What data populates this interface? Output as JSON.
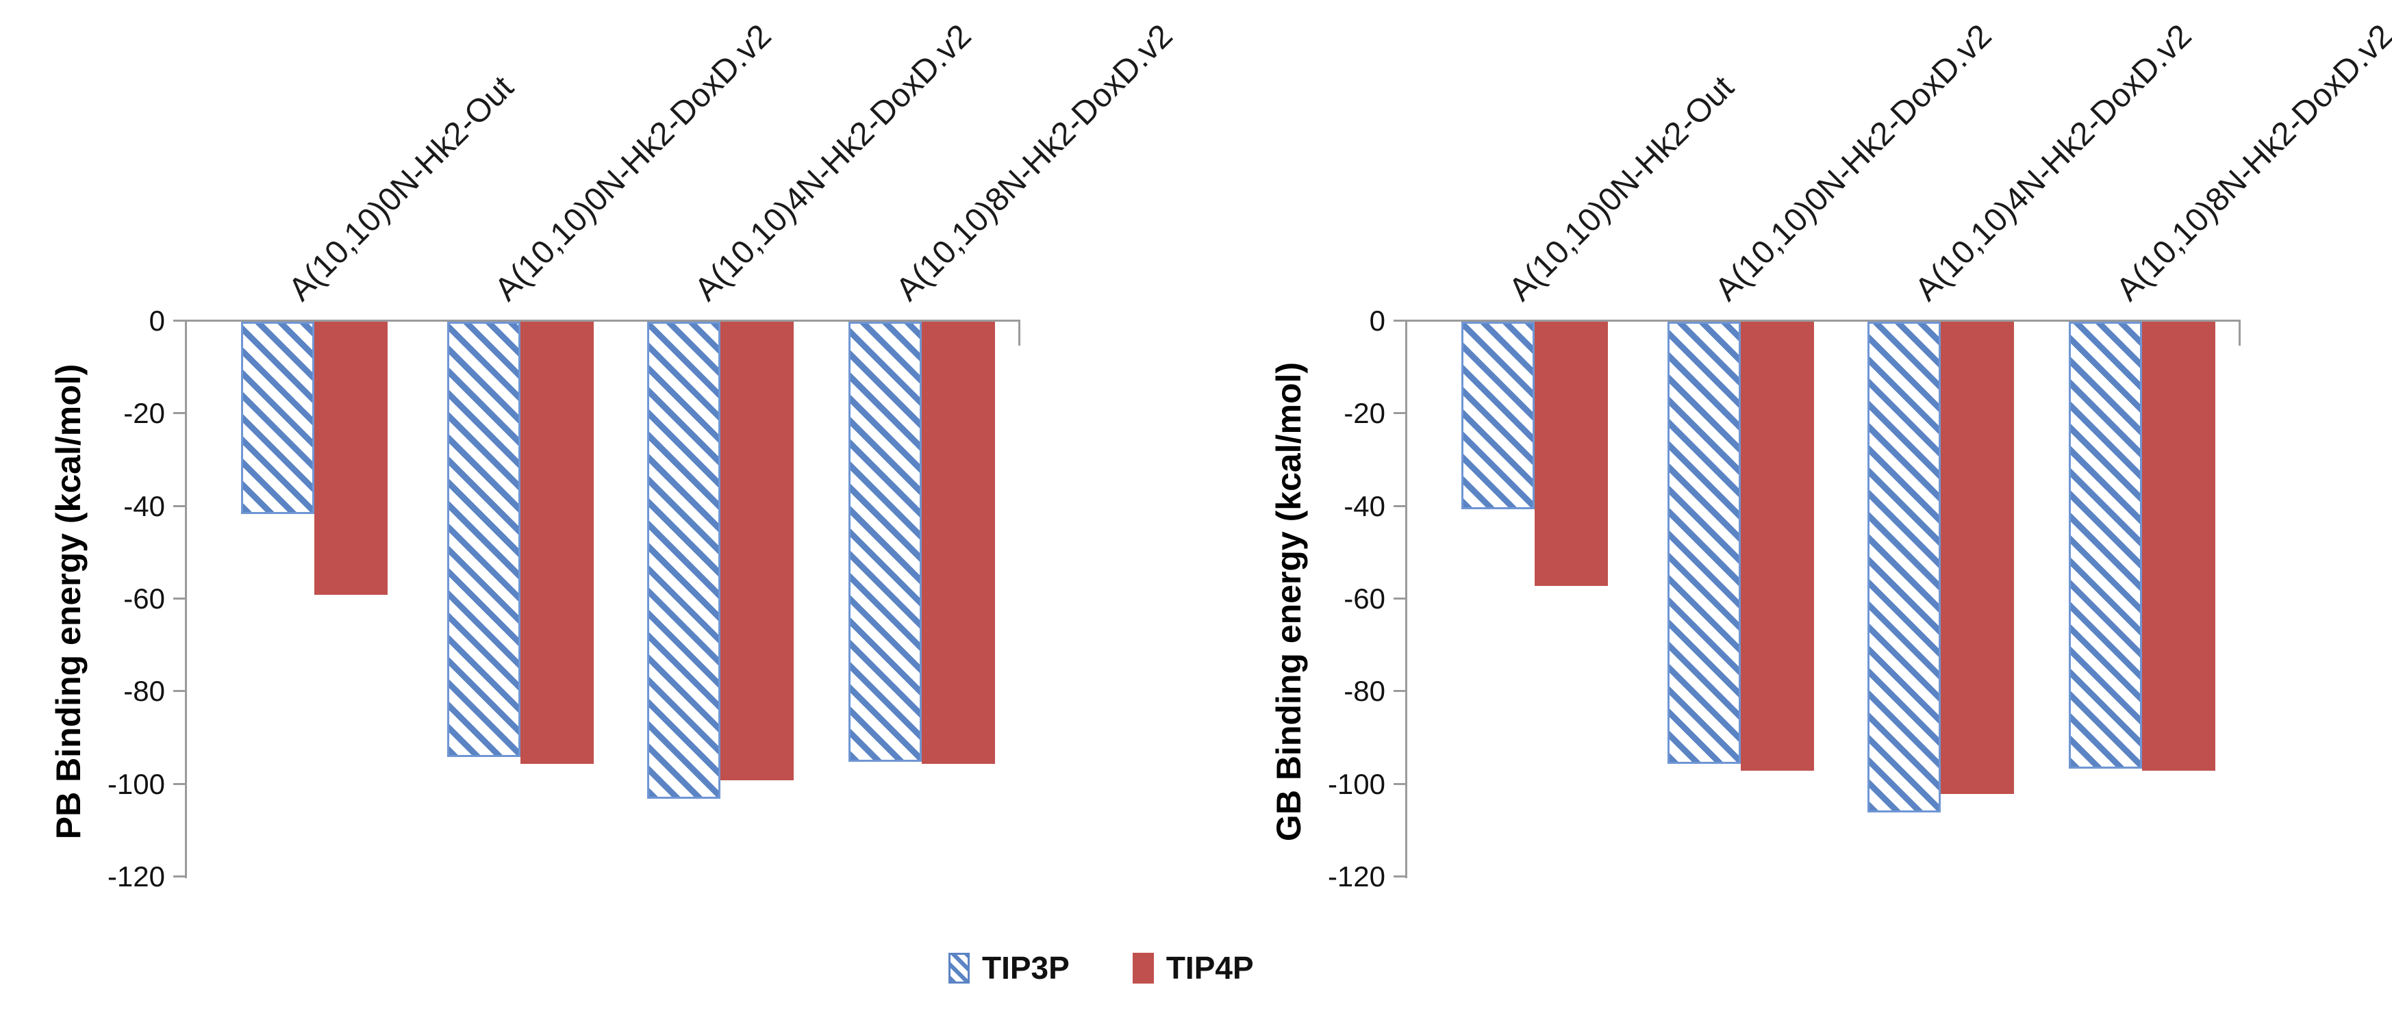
{
  "figure": {
    "description": "Two grouped bar charts of binding energies for carbon nanotube systems with TIP3P and TIP4P water models"
  },
  "colors": {
    "tip3p_blue": "#5b84c4",
    "tip3p_border": "#6f96d4",
    "tip4p_red": "#c0504d",
    "axis_gray": "#9b9b9b",
    "text_black": "#111111"
  },
  "legend": {
    "items": [
      {
        "label": "TIP3P",
        "swatch": "blue-diagonal-hatch"
      },
      {
        "label": "TIP4P",
        "swatch": "red-solid"
      }
    ]
  },
  "chart_data": [
    {
      "type": "bar",
      "title": "",
      "xlabel": "",
      "ylabel": "PB Binding energy (kcal/mol)",
      "categories": [
        "A(10,10)0N-Hk2-Out",
        "A(10,10)0N-Hk2-DoxD.v2",
        "A(10,10)4N-Hk2-DoxD.v2",
        "A(10,10)8N-Hk2-DoxD.v2"
      ],
      "series": [
        {
          "name": "TIP3P",
          "style": "hatched",
          "values": [
            -41.5,
            -94,
            -103,
            -95
          ]
        },
        {
          "name": "TIP4P",
          "style": "solid",
          "values": [
            -59,
            -95.5,
            -99,
            -95.5
          ]
        }
      ],
      "ylim": [
        0,
        -120
      ],
      "yticks": [
        0,
        -20,
        -40,
        -60,
        -80,
        -100,
        -120
      ],
      "grid": false,
      "legend_position": "bottom-center"
    },
    {
      "type": "bar",
      "title": "",
      "xlabel": "",
      "ylabel": "GB Binding energy (kcal/mol)",
      "categories": [
        "A(10,10)0N-Hk2-Out",
        "A(10,10)0N-Hk2-DoxD.v2",
        "A(10,10)4N-Hk2-DoxD.v2",
        "A(10,10)8N-Hk2-DoxD.v2"
      ],
      "series": [
        {
          "name": "TIP3P",
          "style": "hatched",
          "values": [
            -40.5,
            -95.5,
            -106,
            -96.5
          ]
        },
        {
          "name": "TIP4P",
          "style": "solid",
          "values": [
            -57,
            -97,
            -102,
            -97
          ]
        }
      ],
      "ylim": [
        0,
        -120
      ],
      "yticks": [
        0,
        -20,
        -40,
        -60,
        -80,
        -100,
        -120
      ],
      "grid": false,
      "legend_position": "bottom-center"
    }
  ]
}
